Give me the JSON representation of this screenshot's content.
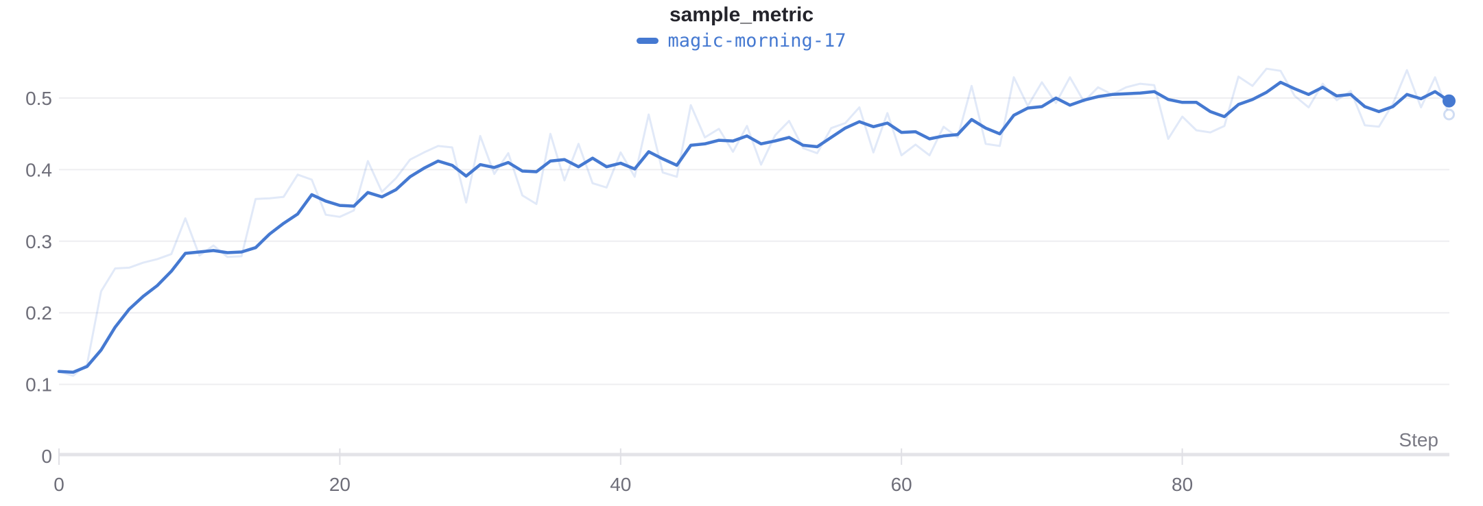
{
  "chart": {
    "title": "sample_metric",
    "legend": {
      "run_label": "magic-morning-17"
    },
    "x_axis_label": "Step"
  },
  "chart_data": {
    "type": "line",
    "title": "sample_metric",
    "xlabel": "Step",
    "ylabel": "",
    "x_range": [
      0,
      99
    ],
    "ylim": [
      0,
      0.55
    ],
    "x_ticks": [
      0,
      20,
      40,
      60,
      80
    ],
    "y_ticks": [
      0,
      0.1,
      0.2,
      0.3,
      0.4,
      0.5
    ],
    "grid": "horizontal",
    "legend_position": "top-center",
    "colors": {
      "run_blue": "#4579d1",
      "grid_line": "#eeeef1",
      "axis_line": "#e4e4e8",
      "tick_mark": "#e0e0e5",
      "tick_text": "#6e6e79",
      "title_text": "#24242b"
    },
    "series": [
      {
        "name": "magic-morning-17 (raw)",
        "role": "raw",
        "color": "#4579d1",
        "values": [
          0.118,
          0.112,
          0.128,
          0.23,
          0.262,
          0.263,
          0.27,
          0.275,
          0.282,
          0.332,
          0.28,
          0.294,
          0.278,
          0.279,
          0.359,
          0.36,
          0.362,
          0.393,
          0.386,
          0.337,
          0.334,
          0.343,
          0.412,
          0.369,
          0.388,
          0.414,
          0.424,
          0.433,
          0.431,
          0.354,
          0.447,
          0.394,
          0.423,
          0.364,
          0.352,
          0.45,
          0.385,
          0.436,
          0.381,
          0.375,
          0.424,
          0.39,
          0.477,
          0.396,
          0.39,
          0.49,
          0.445,
          0.457,
          0.425,
          0.461,
          0.407,
          0.448,
          0.468,
          0.43,
          0.423,
          0.458,
          0.465,
          0.487,
          0.424,
          0.479,
          0.42,
          0.435,
          0.42,
          0.46,
          0.445,
          0.517,
          0.436,
          0.433,
          0.529,
          0.489,
          0.522,
          0.493,
          0.529,
          0.495,
          0.515,
          0.505,
          0.515,
          0.52,
          0.518,
          0.443,
          0.474,
          0.455,
          0.452,
          0.461,
          0.53,
          0.517,
          0.541,
          0.538,
          0.503,
          0.487,
          0.52,
          0.497,
          0.51,
          0.462,
          0.46,
          0.492,
          0.539,
          0.487,
          0.529,
          0.477
        ]
      },
      {
        "name": "magic-morning-17",
        "role": "smoothed",
        "color": "#4579d1",
        "values": [
          0.118,
          0.117,
          0.125,
          0.148,
          0.18,
          0.205,
          0.223,
          0.238,
          0.258,
          0.283,
          0.285,
          0.287,
          0.284,
          0.285,
          0.291,
          0.31,
          0.325,
          0.338,
          0.365,
          0.356,
          0.35,
          0.349,
          0.368,
          0.362,
          0.372,
          0.39,
          0.402,
          0.412,
          0.406,
          0.391,
          0.407,
          0.403,
          0.41,
          0.398,
          0.397,
          0.412,
          0.414,
          0.404,
          0.416,
          0.404,
          0.409,
          0.401,
          0.425,
          0.415,
          0.406,
          0.434,
          0.436,
          0.441,
          0.44,
          0.447,
          0.436,
          0.44,
          0.445,
          0.434,
          0.432,
          0.445,
          0.458,
          0.467,
          0.46,
          0.465,
          0.452,
          0.453,
          0.443,
          0.447,
          0.449,
          0.47,
          0.458,
          0.45,
          0.476,
          0.486,
          0.488,
          0.5,
          0.49,
          0.497,
          0.502,
          0.505,
          0.506,
          0.507,
          0.509,
          0.498,
          0.494,
          0.494,
          0.481,
          0.474,
          0.491,
          0.498,
          0.508,
          0.522,
          0.513,
          0.505,
          0.515,
          0.503,
          0.505,
          0.488,
          0.481,
          0.488,
          0.505,
          0.499,
          0.509,
          0.496
        ]
      }
    ]
  }
}
